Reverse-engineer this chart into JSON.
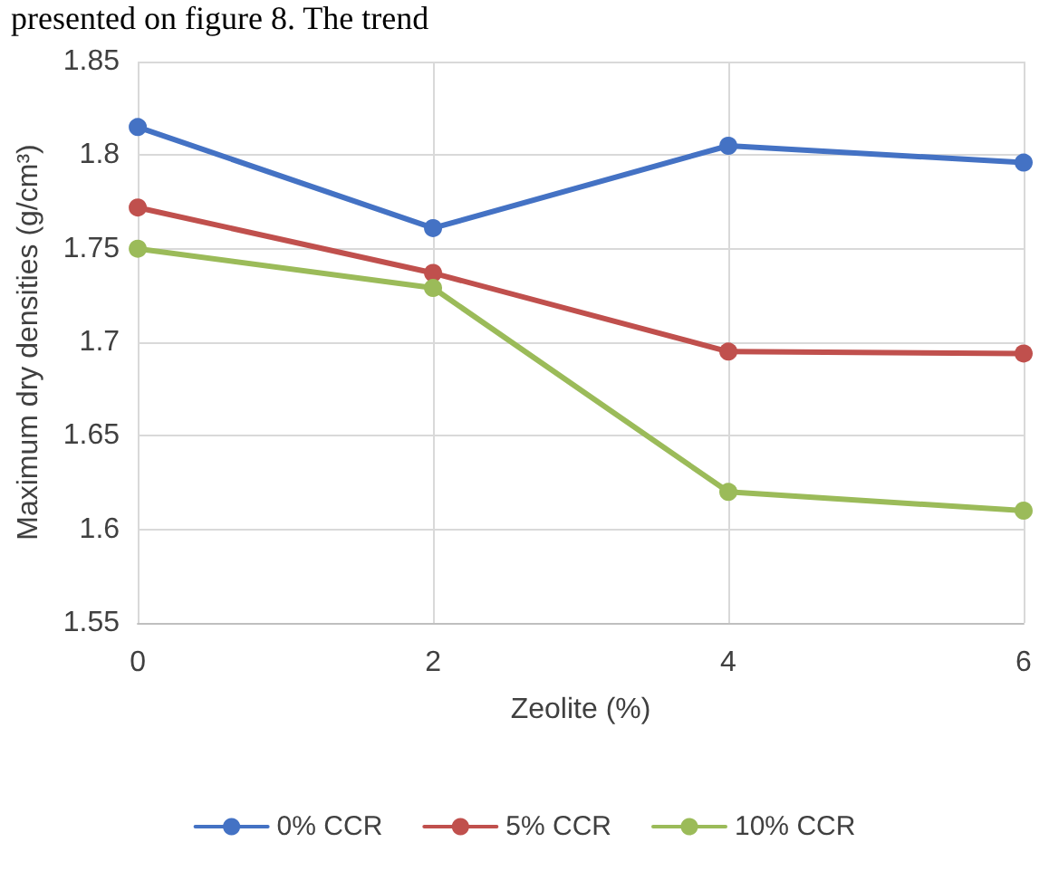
{
  "chart_data": {
    "type": "line",
    "xlabel": "Zeolite (%)",
    "ylabel": "Maximum dry densities (g/cm³)",
    "annotations": [
      "presented on figure 8. The trend"
    ],
    "x": [
      0,
      2,
      4,
      6
    ],
    "xlim": [
      0,
      6
    ],
    "xticks": [
      0,
      2,
      4,
      6
    ],
    "ylim": [
      1.55,
      1.85
    ],
    "yticks": [
      1.55,
      1.6,
      1.65,
      1.7,
      1.75,
      1.8,
      1.85
    ],
    "grid": true,
    "legend": "bottom",
    "marker": "circle",
    "line_style": "solid",
    "series": [
      {
        "name": "0% CCR",
        "color": "#4472c4",
        "values": [
          1.815,
          1.761,
          1.805,
          1.796
        ]
      },
      {
        "name": "5% CCR",
        "color": "#c0504d",
        "values": [
          1.772,
          1.737,
          1.695,
          1.694
        ]
      },
      {
        "name": "10% CCR",
        "color": "#9bbb59",
        "values": [
          1.75,
          1.729,
          1.62,
          1.61
        ]
      }
    ]
  }
}
